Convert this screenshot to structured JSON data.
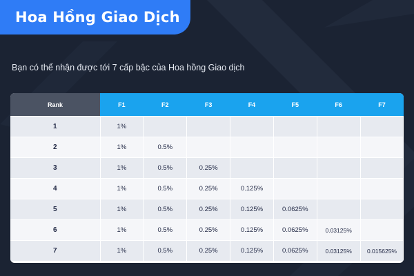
{
  "page": {
    "title": "Hoa Hồng Giao Dịch",
    "subtitle": "Bạn có thể nhận được tới 7 cấp bậc của Hoa hồng Giao dịch"
  },
  "colors": {
    "background": "#1b2333",
    "title_banner": "#2f7cf6",
    "rank_header": "#4b5363",
    "level_header": "#1aa3ee",
    "row_odd": "#e7eaf0",
    "row_even": "#f5f6f9",
    "cell_text": "#232a46"
  },
  "table": {
    "headers": [
      "Rank",
      "F1",
      "F2",
      "F3",
      "F4",
      "F5",
      "F6",
      "F7"
    ],
    "rows": [
      [
        "1",
        "1%",
        "",
        "",
        "",
        "",
        "",
        ""
      ],
      [
        "2",
        "1%",
        "0.5%",
        "",
        "",
        "",
        "",
        ""
      ],
      [
        "3",
        "1%",
        "0.5%",
        "0.25%",
        "",
        "",
        "",
        ""
      ],
      [
        "4",
        "1%",
        "0.5%",
        "0.25%",
        "0.125%",
        "",
        "",
        ""
      ],
      [
        "5",
        "1%",
        "0.5%",
        "0.25%",
        "0.125%",
        "0.0625%",
        "",
        ""
      ],
      [
        "6",
        "1%",
        "0.5%",
        "0.25%",
        "0.125%",
        "0.0625%",
        "0.03125%",
        ""
      ],
      [
        "7",
        "1%",
        "0.5%",
        "0.25%",
        "0.125%",
        "0.0625%",
        "0.03125%",
        "0.015625%"
      ]
    ]
  }
}
